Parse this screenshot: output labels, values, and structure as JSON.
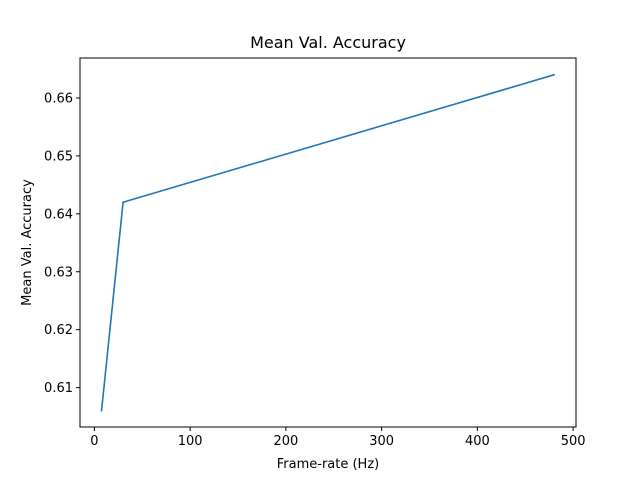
{
  "chart_data": {
    "type": "line",
    "title": "Mean Val. Accuracy",
    "xlabel": "Frame-rate (Hz)",
    "ylabel": "Mean Val. Accuracy",
    "xlim": [
      -15,
      503
    ],
    "ylim": [
      0.6032,
      0.6669
    ],
    "xticks": [
      0,
      100,
      200,
      300,
      400,
      500
    ],
    "yticks": [
      0.61,
      0.62,
      0.63,
      0.64,
      0.65,
      0.66
    ],
    "xtick_labels": [
      "0",
      "100",
      "200",
      "300",
      "400",
      "500"
    ],
    "ytick_labels": [
      "0.61",
      "0.62",
      "0.63",
      "0.64",
      "0.65",
      "0.66"
    ],
    "grid": false,
    "series": [
      {
        "color": "#1f77b4",
        "x": [
          7.5,
          30,
          480
        ],
        "y": [
          0.606,
          0.642,
          0.664
        ]
      }
    ]
  }
}
